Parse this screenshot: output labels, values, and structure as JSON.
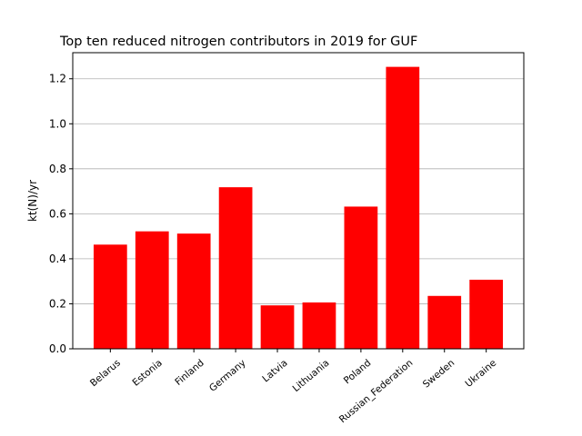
{
  "chart_data": {
    "type": "bar",
    "title": "Top ten reduced nitrogen contributors in 2019 for  GUF",
    "xlabel": "",
    "ylabel": "kt(N)/yr",
    "categories": [
      "Belarus",
      "Estonia",
      "Finland",
      "Germany",
      "Latvia",
      "Lithuania",
      "Poland",
      "Russian_Federation",
      "Sweden",
      "Ukraine"
    ],
    "values": [
      0.463,
      0.522,
      0.512,
      0.718,
      0.193,
      0.206,
      0.632,
      1.253,
      0.235,
      0.307
    ],
    "ylim": [
      0,
      1.316
    ],
    "yticks": [
      "0.0",
      "0.2",
      "0.4",
      "0.6",
      "0.8",
      "1.0",
      "1.2"
    ],
    "bar_color": "#ff0000",
    "grid": "horizontal"
  }
}
